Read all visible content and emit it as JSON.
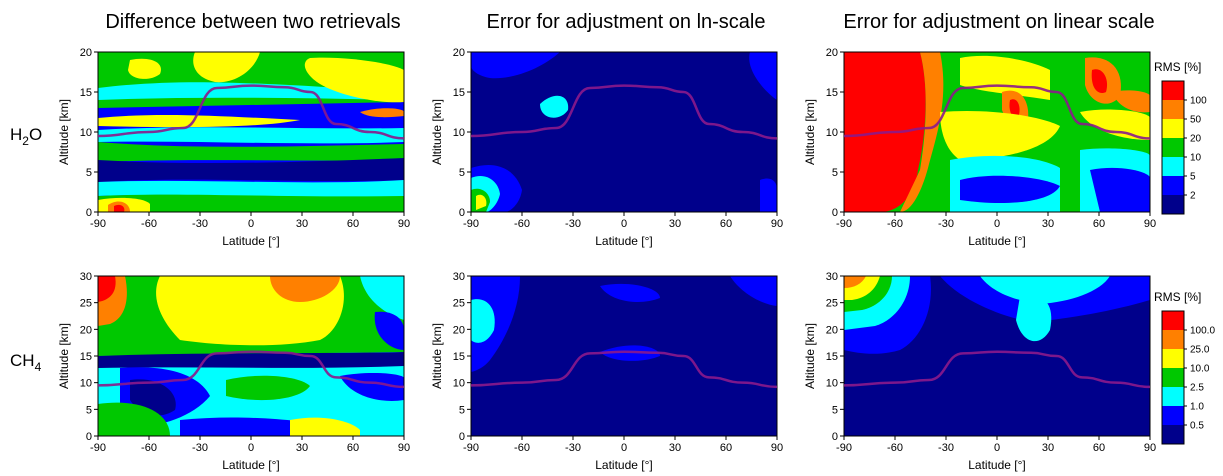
{
  "titles": [
    "Difference between two retrievals",
    "Error for adjustment on ln-scale",
    "Error for adjustment on linear scale"
  ],
  "rows": [
    {
      "label_main": "H",
      "label_sub": "2",
      "label_tail": "O"
    },
    {
      "label_main": "CH",
      "label_sub": "4",
      "label_tail": ""
    }
  ],
  "colorbars": [
    {
      "title": "RMS [%]",
      "labels": [
        "100",
        "50",
        "20",
        "10",
        "5",
        "2"
      ],
      "colors": [
        "#ff0000",
        "#ff8000",
        "#ffff00",
        "#00c800",
        "#00ffff",
        "#0000ff",
        "#00008b"
      ]
    },
    {
      "title": "RMS [%]",
      "labels": [
        "100.0",
        "25.0",
        "10.0",
        "2.5",
        "1.0",
        "0.5"
      ],
      "colors": [
        "#ff0000",
        "#ff8000",
        "#ffff00",
        "#00c800",
        "#00ffff",
        "#0000ff",
        "#00008b"
      ]
    }
  ],
  "chart_data": [
    {
      "type": "heatmap",
      "species": "H2O",
      "title": "Difference between two retrievals",
      "xlabel": "Latitude [°]",
      "ylabel": "Altitude [km]",
      "xlim": [
        -90,
        90
      ],
      "ylim": [
        0,
        20
      ],
      "xticks": [
        -90,
        -60,
        -30,
        0,
        30,
        60,
        90
      ],
      "yticks": [
        0,
        5,
        10,
        15,
        20
      ],
      "tropopause": {
        "lat": [
          -90,
          -60,
          -40,
          -20,
          0,
          20,
          35,
          50,
          70,
          90
        ],
        "alt_km": [
          9.5,
          10,
          10.5,
          15.5,
          15.8,
          15.6,
          15,
          11,
          10,
          9.2
        ]
      }
    },
    {
      "type": "heatmap",
      "species": "H2O",
      "title": "Error for adjustment on ln-scale",
      "xlabel": "Latitude [°]",
      "ylabel": "Altitude [km]",
      "xlim": [
        -90,
        90
      ],
      "ylim": [
        0,
        20
      ],
      "xticks": [
        -90,
        -60,
        -30,
        0,
        30,
        60,
        90
      ],
      "yticks": [
        0,
        5,
        10,
        15,
        20
      ],
      "tropopause": {
        "lat": [
          -90,
          -60,
          -40,
          -20,
          0,
          20,
          35,
          50,
          70,
          90
        ],
        "alt_km": [
          9.5,
          10,
          10.5,
          15.5,
          15.8,
          15.6,
          15,
          11,
          10,
          9.2
        ]
      }
    },
    {
      "type": "heatmap",
      "species": "H2O",
      "title": "Error for adjustment on linear scale",
      "xlabel": "Latitude [°]",
      "ylabel": "Altitude [km]",
      "xlim": [
        -90,
        90
      ],
      "ylim": [
        0,
        20
      ],
      "xticks": [
        -90,
        -60,
        -30,
        0,
        30,
        60,
        90
      ],
      "yticks": [
        0,
        5,
        10,
        15,
        20
      ],
      "tropopause": {
        "lat": [
          -90,
          -60,
          -40,
          -20,
          0,
          20,
          35,
          50,
          70,
          90
        ],
        "alt_km": [
          9.5,
          10,
          10.5,
          15.5,
          15.8,
          15.6,
          15,
          11,
          10,
          9.2
        ]
      }
    },
    {
      "type": "heatmap",
      "species": "CH4",
      "title": "",
      "xlabel": "Latitude [°]",
      "ylabel": "Altitude [km]",
      "xlim": [
        -90,
        90
      ],
      "ylim": [
        0,
        30
      ],
      "xticks": [
        -90,
        -60,
        -30,
        0,
        30,
        60,
        90
      ],
      "yticks": [
        0,
        5,
        10,
        15,
        20,
        25,
        30
      ],
      "tropopause": {
        "lat": [
          -90,
          -60,
          -40,
          -20,
          0,
          20,
          35,
          50,
          70,
          90
        ],
        "alt_km": [
          9.5,
          10,
          10.5,
          15.5,
          15.8,
          15.6,
          15,
          11,
          10,
          9.2
        ]
      }
    },
    {
      "type": "heatmap",
      "species": "CH4",
      "title": "",
      "xlabel": "Latitude [°]",
      "ylabel": "Altitude [km]",
      "xlim": [
        -90,
        90
      ],
      "ylim": [
        0,
        30
      ],
      "xticks": [
        -90,
        -60,
        -30,
        0,
        30,
        60,
        90
      ],
      "yticks": [
        0,
        5,
        10,
        15,
        20,
        25,
        30
      ],
      "tropopause": {
        "lat": [
          -90,
          -60,
          -40,
          -20,
          0,
          20,
          35,
          50,
          70,
          90
        ],
        "alt_km": [
          9.5,
          10,
          10.5,
          15.5,
          15.8,
          15.6,
          15,
          11,
          10,
          9.2
        ]
      }
    },
    {
      "type": "heatmap",
      "species": "CH4",
      "title": "",
      "xlabel": "Latitude [°]",
      "ylabel": "Altitude [km]",
      "xlim": [
        -90,
        90
      ],
      "ylim": [
        0,
        30
      ],
      "xticks": [
        -90,
        -60,
        -30,
        0,
        30,
        60,
        90
      ],
      "yticks": [
        0,
        5,
        10,
        15,
        20,
        25,
        30
      ],
      "tropopause": {
        "lat": [
          -90,
          -60,
          -40,
          -20,
          0,
          20,
          35,
          50,
          70,
          90
        ],
        "alt_km": [
          9.5,
          10,
          10.5,
          15.5,
          15.8,
          15.6,
          15,
          11,
          10,
          9.2
        ]
      }
    }
  ]
}
